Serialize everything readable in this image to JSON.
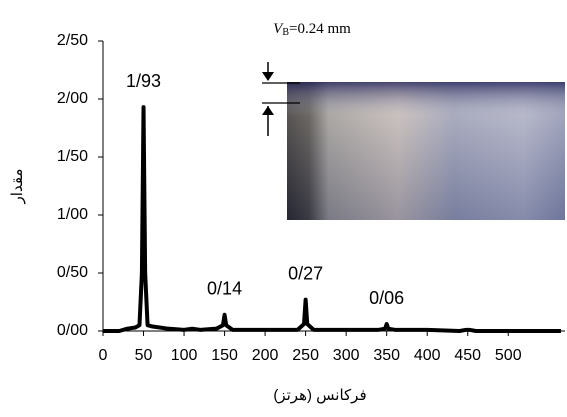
{
  "chart_data": {
    "type": "line",
    "x_label": "فرکانس (هرتز)",
    "y_label": "مقدار",
    "annotation": {
      "symbol": "V",
      "subscript": "B",
      "text": "=0.24 mm"
    },
    "x": [
      0,
      20,
      30,
      40,
      45,
      48,
      50,
      52,
      55,
      60,
      70,
      80,
      100,
      110,
      120,
      140,
      148,
      150,
      152,
      160,
      200,
      240,
      248,
      250,
      252,
      260,
      300,
      340,
      348,
      350,
      352,
      360,
      400,
      440,
      448,
      450,
      452,
      460,
      500,
      565
    ],
    "series": [
      {
        "color": "#000000",
        "values": [
          0,
          0,
          0.02,
          0.03,
          0.05,
          0.5,
          1.93,
          0.5,
          0.05,
          0.04,
          0.03,
          0.02,
          0.01,
          0.02,
          0.01,
          0.02,
          0.05,
          0.14,
          0.05,
          0.01,
          0.01,
          0.01,
          0.06,
          0.27,
          0.06,
          0.01,
          0.01,
          0.01,
          0.02,
          0.06,
          0.02,
          0.01,
          0.01,
          0.0,
          0.01,
          0.01,
          0.01,
          0.0,
          0.0,
          0.0
        ]
      }
    ],
    "peaks": [
      {
        "x": 50,
        "value": 1.93,
        "label": "1/93"
      },
      {
        "x": 150,
        "value": 0.14,
        "label": "0/14"
      },
      {
        "x": 250,
        "value": 0.27,
        "label": "0/27"
      },
      {
        "x": 350,
        "value": 0.06,
        "label": "0/06"
      }
    ],
    "xlim": [
      0,
      570
    ],
    "xticks": [
      0,
      50,
      100,
      150,
      200,
      250,
      300,
      350,
      400,
      450,
      500
    ],
    "ylim": [
      0,
      2.5
    ],
    "yticks": [
      {
        "value": 0,
        "label": "0/00"
      },
      {
        "value": 0.5,
        "label": "0/50"
      },
      {
        "value": 1,
        "label": "1/00"
      },
      {
        "value": 1.5,
        "label": "1/50"
      },
      {
        "value": 2,
        "label": "2/00"
      },
      {
        "value": 2.5,
        "label": "2/50"
      }
    ]
  }
}
